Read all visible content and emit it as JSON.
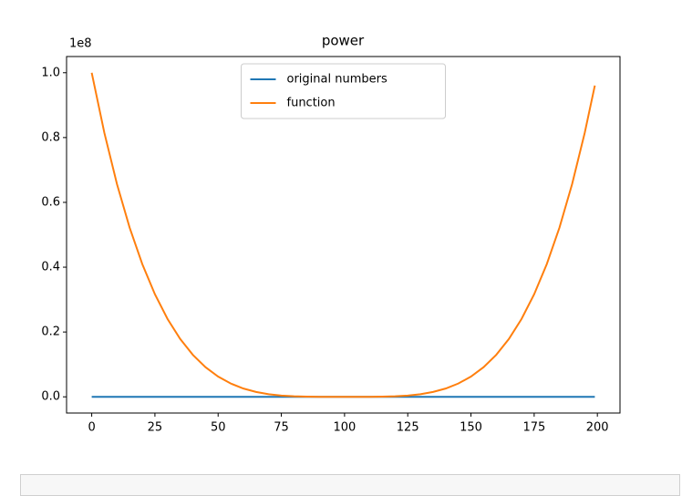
{
  "chart_data": {
    "type": "line",
    "title": "power",
    "y_offset_label": "1e8",
    "x": [
      0,
      5,
      10,
      15,
      20,
      25,
      30,
      35,
      40,
      45,
      50,
      55,
      60,
      65,
      70,
      75,
      80,
      85,
      90,
      95,
      100,
      105,
      110,
      115,
      120,
      125,
      130,
      135,
      140,
      145,
      150,
      155,
      160,
      165,
      170,
      175,
      180,
      185,
      190,
      195,
      199
    ],
    "series": [
      {
        "name": "original numbers",
        "color": "#1f77b4",
        "values": [
          0,
          5,
          10,
          15,
          20,
          25,
          30,
          35,
          40,
          45,
          50,
          55,
          60,
          65,
          70,
          75,
          80,
          85,
          90,
          95,
          100,
          105,
          110,
          115,
          120,
          125,
          130,
          135,
          140,
          145,
          150,
          155,
          160,
          165,
          170,
          175,
          180,
          185,
          190,
          195,
          199
        ]
      },
      {
        "name": "function",
        "color": "#ff7f0e",
        "values": [
          100000000,
          81450625,
          65610000,
          52200625,
          40960000,
          31640625,
          24010000,
          17850625,
          12960000,
          9150625,
          6250000,
          4100625,
          2560000,
          1500625,
          810000,
          390625,
          160000,
          50625,
          10000,
          625,
          0,
          625,
          10000,
          50625,
          160000,
          390625,
          810000,
          1500625,
          2560000,
          4100625,
          6250000,
          9150625,
          12960000,
          17850625,
          24010000,
          31640625,
          40960000,
          52200625,
          65610000,
          81450625,
          96059601
        ]
      }
    ],
    "xlim": [
      -9.95,
      208.95
    ],
    "xticks": [
      0,
      25,
      50,
      75,
      100,
      125,
      150,
      175,
      200
    ],
    "ylim": [
      -5000000,
      105000000
    ],
    "yticks": [
      {
        "value": 0,
        "label": "0.0"
      },
      {
        "value": 20000000,
        "label": "0.2"
      },
      {
        "value": 40000000,
        "label": "0.4"
      },
      {
        "value": 60000000,
        "label": "0.6"
      },
      {
        "value": 80000000,
        "label": "0.8"
      },
      {
        "value": 100000000,
        "label": "1.0"
      }
    ],
    "grid": false,
    "legend": "upper center"
  }
}
